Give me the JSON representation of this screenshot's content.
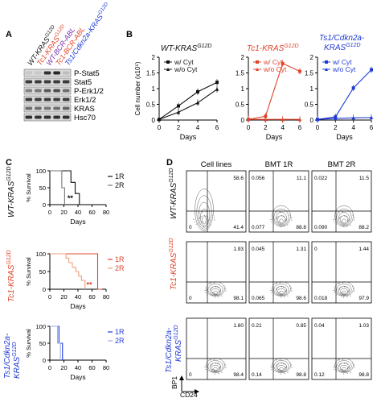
{
  "panels": {
    "A": "A",
    "B": "B",
    "C": "C",
    "D": "D"
  },
  "colors": {
    "black": "#111111",
    "red": "#e0442a",
    "blue": "#1f3ad6",
    "purple": "#7a2fa8"
  },
  "panelA": {
    "lanes": [
      {
        "label": "WT-KRAS",
        "sup": "G12D",
        "color": "#111111"
      },
      {
        "label": "Tc1-KRAS",
        "sup": "G12D",
        "color": "#e0442a"
      },
      {
        "label": "WT-BCR-ABL",
        "sup": "",
        "color": "#7a2fa8"
      },
      {
        "label": "Tc1-BCR-ABL",
        "sup": "",
        "color": "#e0442a"
      },
      {
        "label": "Ts1/Cdkn2a-KRAS",
        "sup": "G12D",
        "color": "#1f3ad6"
      }
    ],
    "blots": [
      "P-Stat5",
      "Stat5",
      "P-Erk1/2",
      "Erk1/2",
      "KRAS",
      "Hsc70"
    ]
  },
  "chart_data": [
    {
      "type": "line",
      "title": "WT-KRAS G12D",
      "ylabel": "Cell number (x10⁵)",
      "xlabel": "Days",
      "xticks": [
        0,
        2,
        4,
        6
      ],
      "yticks": [
        0,
        0.5,
        1,
        1.5,
        2
      ],
      "ylim": [
        0,
        2
      ],
      "series": [
        {
          "name": "w/ Cyt",
          "x": [
            0,
            2,
            4,
            6
          ],
          "y": [
            0.02,
            0.45,
            0.9,
            1.2
          ]
        },
        {
          "name": "w/o Cyt",
          "x": [
            0,
            2,
            4,
            6
          ],
          "y": [
            0.02,
            0.25,
            0.55,
            0.98
          ]
        }
      ]
    },
    {
      "type": "line",
      "title": "Tc1-KRAS G12D",
      "xlabel": "Days",
      "xticks": [
        0,
        2,
        4,
        6
      ],
      "yticks": [
        0,
        0.5,
        1,
        1.5,
        2
      ],
      "ylim": [
        0,
        2
      ],
      "series": [
        {
          "name": "w/ Cyt",
          "x": [
            0,
            2,
            4,
            6
          ],
          "y": [
            0.02,
            0.12,
            1.8,
            1.55
          ]
        },
        {
          "name": "w/o Cyt",
          "x": [
            0,
            2,
            4,
            6
          ],
          "y": [
            0.02,
            0.02,
            0.02,
            0.02
          ]
        }
      ]
    },
    {
      "type": "line",
      "title": "Ts1/Cdkn2a-KRAS G12D",
      "xlabel": "Days",
      "xticks": [
        0,
        2,
        4,
        6
      ],
      "yticks": [
        0,
        0.5,
        1,
        1.5,
        2
      ],
      "ylim": [
        0,
        2
      ],
      "series": [
        {
          "name": "w/ Cyt",
          "x": [
            0,
            2,
            4,
            6
          ],
          "y": [
            0.02,
            0.1,
            1.02,
            1.6
          ]
        },
        {
          "name": "w/o Cyt",
          "x": [
            0,
            2,
            4,
            6
          ],
          "y": [
            0.02,
            0.05,
            0.07,
            0.08
          ]
        }
      ]
    },
    {
      "type": "line",
      "title": "WT-KRAS G12D",
      "ylabel": "% Survival",
      "xlabel": "Days",
      "xticks": [
        0,
        20,
        40,
        60,
        80
      ],
      "yticks": [
        0,
        50,
        100
      ],
      "annotation": "**",
      "series": [
        {
          "name": "1R",
          "x": [
            0,
            30,
            30,
            36,
            36,
            42,
            42
          ],
          "y": [
            100,
            100,
            66,
            66,
            33,
            33,
            0
          ]
        },
        {
          "name": "2R",
          "x": [
            0,
            17,
            17,
            21,
            21
          ],
          "y": [
            100,
            100,
            50,
            50,
            0
          ]
        }
      ]
    },
    {
      "type": "line",
      "title": "Tc1-KRAS G12D",
      "ylabel": "% Survival",
      "xlabel": "Days",
      "xticks": [
        0,
        20,
        40,
        60,
        80
      ],
      "yticks": [
        0,
        50,
        100
      ],
      "annotation": "**",
      "series": [
        {
          "name": "1R",
          "x": [
            0,
            68,
            68,
            74
          ],
          "y": [
            100,
            100,
            0,
            0
          ]
        },
        {
          "name": "2R",
          "x": [
            0,
            23,
            23,
            27,
            27,
            32,
            32,
            37,
            37,
            41,
            41,
            45,
            45,
            50,
            50
          ],
          "y": [
            100,
            100,
            88,
            88,
            75,
            75,
            62,
            62,
            50,
            50,
            37,
            37,
            25,
            25,
            0
          ]
        }
      ]
    },
    {
      "type": "line",
      "title": "Ts1/Cdkn2a-KRAS G12D",
      "ylabel": "% Survival",
      "xlabel": "Days",
      "xticks": [
        0,
        20,
        40,
        60,
        80
      ],
      "yticks": [
        0,
        50,
        100
      ],
      "series": [
        {
          "name": "1R",
          "x": [
            0,
            13,
            13,
            18,
            18
          ],
          "y": [
            100,
            100,
            50,
            50,
            0
          ]
        },
        {
          "name": "2R",
          "x": [
            0,
            11,
            11,
            15,
            15
          ],
          "y": [
            100,
            100,
            50,
            50,
            0
          ]
        }
      ]
    }
  ],
  "panelD": {
    "columns": [
      "Cell lines",
      "BMT 1R",
      "BMT 2R"
    ],
    "rows": [
      {
        "label": "WT-KRAS",
        "sup": "G12D",
        "color": "#111111"
      },
      {
        "label": "Tc1-KRAS",
        "sup": "G12D",
        "color": "#e0442a"
      },
      {
        "label": "Ts1/Cdkn2a-KRAS",
        "sup": "G12D",
        "color": "#1f3ad6"
      }
    ],
    "values": [
      [
        [
          "58.6",
          "0",
          "41.4"
        ],
        [
          "0.056",
          "11.1",
          "0.077",
          "88.8"
        ],
        [
          "0.022",
          "11.5",
          "0.090",
          "88.2"
        ]
      ],
      [
        [
          "1.93",
          "0",
          "98.1"
        ],
        [
          "0.045",
          "1.31",
          "0.065",
          "98.6"
        ],
        [
          "0",
          "1.44",
          "0.018",
          "97.9"
        ]
      ],
      [
        [
          "1.60",
          "0",
          "98.4"
        ],
        [
          "0.21",
          "0.85",
          "0.14",
          "98.8"
        ],
        [
          "0.04",
          "1.03",
          "0.12",
          "98.8"
        ]
      ]
    ],
    "yaxis": "BP1",
    "xaxis": "CD24"
  }
}
